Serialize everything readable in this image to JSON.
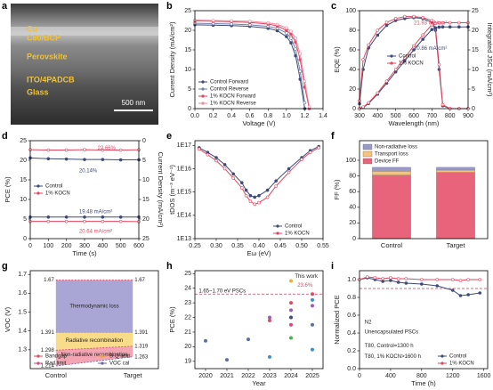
{
  "sem": {
    "panel": "a",
    "labels": [
      "Cu",
      "C60/BCP",
      "Perovskite",
      "ITO/4PADCB",
      "Glass"
    ],
    "scale_bar": "500 nm"
  },
  "chart_data": [
    {
      "panel": "b",
      "type": "line",
      "xlabel": "Voltage (V)",
      "ylabel": "Current Density (mA/cm²)",
      "xlim": [
        0,
        1.4
      ],
      "xticks": [
        {
          "value": 0,
          "label": "0.0"
        },
        0.2,
        0.4,
        0.6,
        0.8,
        {
          "value": 1,
          "label": "1.0"
        },
        1.2,
        1.4
      ],
      "ylim": [
        0,
        25
      ],
      "yticks": [
        0,
        5,
        10,
        15,
        20,
        25
      ],
      "markers": true,
      "legend": "lower left",
      "x": [
        0,
        0.2,
        0.4,
        0.6,
        0.8,
        0.9,
        1.0,
        1.05,
        1.1,
        1.15,
        1.2,
        1.25
      ],
      "series": [
        {
          "name": "Control Forward",
          "color": "#3d4a7a",
          "values": [
            21.4,
            21.3,
            21.2,
            21.0,
            20.5,
            19.9,
            18.4,
            16.8,
            13.5,
            7.5,
            0,
            null
          ]
        },
        {
          "name": "Control Reverse",
          "color": "#7080a8",
          "values": [
            21.8,
            21.7,
            21.6,
            21.4,
            21.0,
            20.5,
            19.3,
            18.0,
            15.2,
            9.5,
            1.5,
            null
          ]
        },
        {
          "name": "1% KOCN Forward",
          "color": "#e5455f",
          "values": [
            22.4,
            22.3,
            22.2,
            22.0,
            21.6,
            21.1,
            20.0,
            19.0,
            17.0,
            12.5,
            5.5,
            0
          ]
        },
        {
          "name": "1% KOCN Reverse",
          "color": "#f08a9a",
          "values": [
            22.6,
            22.5,
            22.4,
            22.3,
            21.9,
            21.5,
            20.6,
            19.7,
            18.0,
            14.0,
            7.0,
            0.5
          ]
        }
      ]
    },
    {
      "panel": "c",
      "type": "line",
      "xlabel": "Wavelength (nm)",
      "ylabel": "EQE (%)",
      "y2label": "Integrated JSC (mA/cm²)",
      "xlim": [
        300,
        900
      ],
      "xticks": [
        300,
        400,
        500,
        600,
        700,
        800,
        900
      ],
      "ylim": [
        0,
        100
      ],
      "yticks": [
        0,
        20,
        40,
        60,
        80,
        100
      ],
      "y2lim": [
        0,
        25
      ],
      "y2ticks": [
        0,
        5,
        10,
        15,
        20,
        25
      ],
      "markers": true,
      "legend": "center",
      "annotations": [
        "21.93 mA/cm²",
        "20.86 mA/cm²"
      ],
      "annotation_colors": [
        "#e5455f",
        "#3d4a7a"
      ],
      "x": [
        300,
        320,
        350,
        400,
        450,
        500,
        550,
        600,
        650,
        700,
        720,
        740,
        760,
        800,
        850,
        900
      ],
      "series": [
        {
          "name": "Control",
          "color": "#3d4a7a",
          "values": [
            5,
            40,
            62,
            75,
            85,
            90,
            92,
            93,
            92,
            88,
            80,
            40,
            3,
            0,
            0,
            0
          ]
        },
        {
          "name": "1% KOCN",
          "color": "#e5455f",
          "values": [
            8,
            50,
            65,
            80,
            88,
            92,
            94,
            94,
            93,
            90,
            82,
            45,
            4,
            0,
            0,
            0
          ]
        },
        {
          "axis": "y2",
          "color": "#3d4a7a",
          "values": [
            0,
            0.3,
            1.3,
            3.7,
            6.5,
            9.4,
            12.2,
            15.0,
            17.7,
            20.2,
            20.6,
            20.8,
            20.86,
            20.86,
            20.86,
            20.86
          ]
        },
        {
          "axis": "y2",
          "color": "#e5455f",
          "values": [
            0,
            0.4,
            1.5,
            4.0,
            7.0,
            10.0,
            13.0,
            16.0,
            18.8,
            21.4,
            21.8,
            21.9,
            21.93,
            21.93,
            21.93,
            21.93
          ]
        }
      ]
    },
    {
      "panel": "d",
      "type": "line",
      "xlabel": "Time (s)",
      "ylabel": "PCE (%)",
      "y2label": "Current Density (mA/cm²)",
      "xlim": [
        0,
        600
      ],
      "xticks": [
        0,
        100,
        200,
        300,
        400,
        500,
        600
      ],
      "ylim": [
        0,
        25
      ],
      "yticks": [
        0,
        5,
        10,
        15,
        20,
        25
      ],
      "y2lim": [
        25,
        0
      ],
      "y2ticks": [
        0,
        5,
        10,
        15,
        20,
        25
      ],
      "markers": true,
      "legend": "center left",
      "annotations": [
        "22.66%",
        "20.14%",
        "19.48 mA/cm²",
        "20.64 mA/cm²"
      ],
      "annotation_colors": [
        "#e5455f",
        "#3d4a7a",
        "#3d4a7a",
        "#e5455f"
      ],
      "x": [
        0,
        100,
        200,
        300,
        400,
        500,
        600
      ],
      "series": [
        {
          "name": "Control",
          "color": "#3d4a7a",
          "values": [
            20.6,
            20.4,
            20.3,
            20.2,
            20.2,
            20.1,
            20.14
          ]
        },
        {
          "name": "1% KOCN",
          "color": "#e5455f",
          "values": [
            22.7,
            22.6,
            22.6,
            22.7,
            22.6,
            22.6,
            22.66
          ]
        },
        {
          "axis": "y2",
          "color": "#3d4a7a",
          "values": [
            19.5,
            19.5,
            19.5,
            19.5,
            19.5,
            19.5,
            19.48
          ]
        },
        {
          "axis": "y2",
          "color": "#e5455f",
          "values": [
            20.6,
            20.6,
            20.6,
            20.6,
            20.6,
            20.6,
            20.64
          ]
        }
      ]
    },
    {
      "panel": "e",
      "type": "line",
      "log_y": true,
      "xlabel": "Eω (eV)",
      "ylabel": "tDOS (m⁻³ eV⁻¹)",
      "xlim": [
        0.25,
        0.55
      ],
      "xticks": [
        0.25,
        {
          "value": 0.3,
          "label": "0.30"
        },
        0.35,
        {
          "value": 0.4,
          "label": "0.40"
        },
        0.45,
        {
          "value": 0.5,
          "label": "0.50"
        },
        0.55
      ],
      "ylim": [
        10000000000000.0,
        1.6e+17
      ],
      "yticks": [
        {
          "value": 10000000000000.0,
          "label": "1E13"
        },
        {
          "value": 100000000000000.0,
          "label": "1E14"
        },
        {
          "value": 1000000000000000.0,
          "label": "1E15"
        },
        {
          "value": 1e+16,
          "label": "1E16"
        },
        {
          "value": 1e+17,
          "label": "1E17"
        }
      ],
      "markers": true,
      "legend": "lower right",
      "x": [
        0.26,
        0.28,
        0.3,
        0.32,
        0.34,
        0.36,
        0.37,
        0.38,
        0.39,
        0.4,
        0.42,
        0.44,
        0.47,
        0.5,
        0.52,
        0.54
      ],
      "series": [
        {
          "name": "Control",
          "color": "#3d4a7a",
          "values": [
            8e+16,
            5e+16,
            3e+16,
            1.5e+16,
            6000000000000000.0,
            2500000000000000.0,
            1200000000000000.0,
            700000000000000.0,
            600000000000000.0,
            700000000000000.0,
            1200000000000000.0,
            3000000000000000.0,
            1e+16,
            3e+16,
            6e+16,
            9e+16
          ]
        },
        {
          "name": "1% KOCN",
          "color": "#e5455f",
          "values": [
            7e+16,
            4e+16,
            2.2e+16,
            1e+16,
            4000000000000000.0,
            1500000000000000.0,
            700000000000000.0,
            400000000000000.0,
            300000000000000.0,
            350000000000000.0,
            600000000000000.0,
            1800000000000000.0,
            7000000000000000.0,
            2.5e+16,
            5e+16,
            8e+16
          ]
        }
      ]
    },
    {
      "panel": "f",
      "type": "stacked_bar",
      "ylabel": "FF (%)",
      "legend": "upper left",
      "categories": [
        "Control",
        "Target"
      ],
      "ylim": [
        0,
        125
      ],
      "yticks": [
        0,
        20,
        40,
        60,
        80,
        100
      ],
      "series": [
        {
          "name": "Device FF",
          "color": "#e8647a",
          "values": [
            81,
            84.5
          ]
        },
        {
          "name": "Transport loss",
          "color": "#f7c27a",
          "values": [
            5,
            3
          ]
        },
        {
          "name": "Non-radiative loss",
          "color": "#9a9ac8",
          "values": [
            5,
            3.5
          ]
        }
      ]
    },
    {
      "panel": "g",
      "type": "voc",
      "ylabel": "VOC (V)",
      "legend": "lower center",
      "legend_columns": 2,
      "categories": [
        "Control",
        "Target"
      ],
      "ylim": [
        1.2,
        1.72
      ],
      "yticks": [
        1.3,
        1.4,
        1.5,
        1.6,
        1.7
      ],
      "regions": [
        {
          "name": "Thermodynamic loss",
          "color": "#a9a6d6"
        },
        {
          "name": "Radiative recombination",
          "color": "#f9dc8a"
        },
        {
          "name": "Non-radiative recombination",
          "color": "#f3a5b4"
        }
      ],
      "series": [
        {
          "name": "Bandgap",
          "color": "#e5455f",
          "values": [
            1.67,
            1.67
          ]
        },
        {
          "name": "S-Q limit",
          "color": "#e8a33d",
          "values": [
            1.391,
            1.391
          ]
        },
        {
          "name": "Rad.limit",
          "color": "#d9457a",
          "values": [
            1.298,
            1.319
          ]
        },
        {
          "name": "VOC cal",
          "color": "#6a62b0",
          "values": [
            1.214,
            1.263
          ]
        }
      ]
    },
    {
      "panel": "h",
      "type": "scatter",
      "xlabel": "Year",
      "ylabel": "PCE (%)",
      "xlim": [
        2019.5,
        2025.5
      ],
      "xticks": [
        2020,
        2021,
        2022,
        2023,
        2024,
        2025
      ],
      "ylim": [
        18.5,
        25.2
      ],
      "yticks": [
        19,
        20,
        21,
        22,
        23,
        24,
        25
      ],
      "reference_line": 23.6,
      "annotations": [
        "1.65~1.70 eV PSCs",
        "This work",
        "23.6%"
      ],
      "annotation_colors": [
        "#222",
        "#222",
        "#e5455f"
      ],
      "x": [
        2020,
        2021,
        2022,
        2023,
        2023,
        2023,
        2024,
        2024,
        2024,
        2024,
        2024,
        2024,
        2025,
        2025,
        2025,
        2025,
        2025
      ],
      "values": [
        20.4,
        19.1,
        20.5,
        19.3,
        21.8,
        22.0,
        24.5,
        23.0,
        22.5,
        22.0,
        20.6,
        21.5,
        23.6,
        23.2,
        22.8,
        21.5,
        19.8
      ],
      "colors": [
        "#5b6fa8",
        "#5b6fa8",
        "#5b6fa8",
        "#3a8fd6",
        "#e5455f",
        "#9a5fb5",
        "#e8b33d",
        "#e5455f",
        "#9a5fb5",
        "#3d4a7a",
        "#4caf50",
        "#d9457a",
        "#e5455f",
        "#3a8fd6",
        "#9a5fb5",
        "#5b6fa8",
        "#3a8fd6"
      ]
    },
    {
      "panel": "i",
      "type": "line",
      "xlabel": "Time (h)",
      "ylabel": "Normalized PCE",
      "xlim": [
        0,
        1650
      ],
      "xticks": [
        0,
        400,
        800,
        1200,
        1600
      ],
      "ylim": [
        0,
        1.1
      ],
      "yticks": [
        {
          "value": 0,
          "label": "0.0"
        },
        0.2,
        0.4,
        0.6,
        0.8,
        {
          "value": 1,
          "label": "1.0"
        }
      ],
      "reference_line": 0.9,
      "markers": true,
      "legend": "lower right",
      "annotations": [
        "N2",
        "Unencapsulated PSCs",
        "T80, Control=1300 h",
        "T80, 1% KOCN>1600 h"
      ],
      "annotation_colors": [
        "#222",
        "#222",
        "#222",
        "#222"
      ],
      "x": [
        0,
        100,
        200,
        300,
        400,
        500,
        600,
        800,
        1000,
        1200,
        1300,
        1400,
        1550
      ],
      "series": [
        {
          "name": "Control",
          "color": "#3d4a7a",
          "values": [
            1.0,
            1.02,
            1.0,
            0.98,
            0.99,
            0.97,
            0.96,
            0.95,
            0.93,
            0.88,
            0.82,
            0.83,
            0.85
          ]
        },
        {
          "name": "1% KOCN",
          "color": "#e5455f",
          "values": [
            1.0,
            1.03,
            1.02,
            1.01,
            1.02,
            1.01,
            1.01,
            1.0,
            1.0,
            1.0,
            0.99,
            1.0,
            1.0
          ]
        }
      ]
    }
  ]
}
